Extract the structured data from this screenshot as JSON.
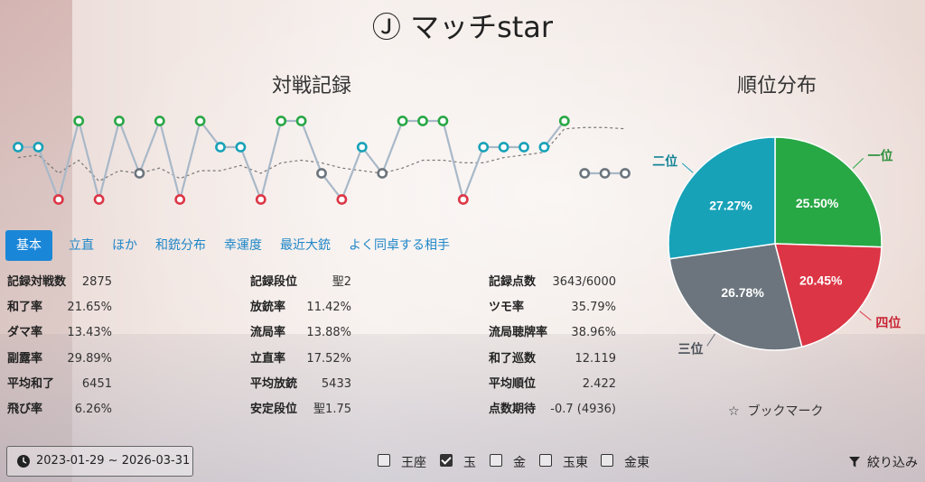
{
  "app": {
    "title": "Ⓙ マッチstar"
  },
  "chart_section": {
    "title": "対戦記録"
  },
  "pie_section": {
    "title": "順位分布"
  },
  "tabs": [
    {
      "label": "基本",
      "active": true
    },
    {
      "label": "立直",
      "active": false
    },
    {
      "label": "ほか",
      "active": false
    },
    {
      "label": "和銃分布",
      "active": false
    },
    {
      "label": "幸運度",
      "active": false
    },
    {
      "label": "最近大銃",
      "active": false
    },
    {
      "label": "よく同卓する相手",
      "active": false
    }
  ],
  "stats": {
    "col1": [
      {
        "label": "記録対戦数",
        "value": "2875"
      },
      {
        "label": "和了率",
        "value": "21.65%"
      },
      {
        "label": "ダマ率",
        "value": "13.43%"
      },
      {
        "label": "副露率",
        "value": "29.89%"
      },
      {
        "label": "平均和了",
        "value": "6451"
      },
      {
        "label": "飛び率",
        "value": "6.26%"
      }
    ],
    "col2": [
      {
        "label": "記録段位",
        "value": "聖2"
      },
      {
        "label": "放銃率",
        "value": "11.42%"
      },
      {
        "label": "流局率",
        "value": "13.88%"
      },
      {
        "label": "立直率",
        "value": "17.52%"
      },
      {
        "label": "平均放銃",
        "value": "5433"
      },
      {
        "label": "安定段位",
        "value": "聖1.75"
      }
    ],
    "col3": [
      {
        "label": "記録点数",
        "value": "3643/6000"
      },
      {
        "label": "ツモ率",
        "value": "35.79%"
      },
      {
        "label": "流局聴牌率",
        "value": "38.96%"
      },
      {
        "label": "和了巡数",
        "value": "12.119"
      },
      {
        "label": "平均順位",
        "value": "2.422"
      },
      {
        "label": "点数期待",
        "value": "-0.7 (4936)"
      }
    ]
  },
  "chart_data": [
    {
      "type": "line",
      "title": "対戦記録",
      "y_scale": "rank (1 top, 4 bottom)",
      "ylim": [
        1,
        4
      ],
      "series": [
        {
          "values": [
            2,
            2,
            4,
            1,
            4,
            1,
            3,
            1,
            4,
            1,
            2,
            2,
            4,
            1,
            1,
            3,
            4,
            2,
            3,
            1,
            1,
            1,
            4,
            2,
            2,
            2,
            2,
            1,
            3,
            3,
            3
          ]
        },
        {
          "style": "dashed",
          "values": [
            2.4,
            2.3,
            3.0,
            2.5,
            3.3,
            2.9,
            3.0,
            2.8,
            3.2,
            2.9,
            2.9,
            2.7,
            3.0,
            2.6,
            2.5,
            2.6,
            2.8,
            2.9,
            3.0,
            2.8,
            2.5,
            2.5,
            2.6,
            2.6,
            2.4,
            2.3,
            2.2,
            1.3,
            1.25,
            1.25,
            1.3
          ]
        }
      ],
      "rank_colors": {
        "1": "#28a745",
        "2": "#17a2b8",
        "3": "#6c757d",
        "4": "#dc3545"
      }
    },
    {
      "type": "pie",
      "title": "順位分布",
      "slices": [
        {
          "label": "一位",
          "value": 25.5,
          "pct_label": "25.50%",
          "color": "#28a745"
        },
        {
          "label": "四位",
          "value": 20.45,
          "pct_label": "20.45%",
          "color": "#dc3545"
        },
        {
          "label": "三位",
          "value": 26.78,
          "pct_label": "26.78%",
          "color": "#6c757d"
        },
        {
          "label": "二位",
          "value": 27.27,
          "pct_label": "27.27%",
          "color": "#17a2b8"
        }
      ]
    }
  ],
  "footer": {
    "date_range": "2023-01-29 ~ 2026-03-31",
    "filters": [
      {
        "label": "王座",
        "checked": false
      },
      {
        "label": "玉",
        "checked": true
      },
      {
        "label": "金",
        "checked": false
      },
      {
        "label": "玉東",
        "checked": false
      },
      {
        "label": "金東",
        "checked": false
      }
    ],
    "filter_button": "絞り込み",
    "bookmark": "ブックマーク"
  },
  "icons": {
    "clock": "clock-icon",
    "star": "star-outline-icon",
    "funnel": "funnel-icon"
  }
}
